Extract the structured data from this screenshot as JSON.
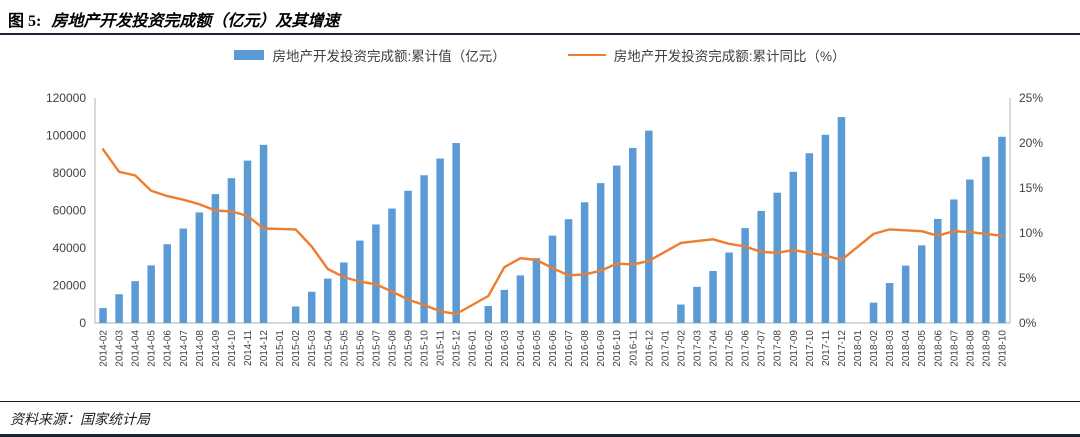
{
  "header": {
    "figure_label": "图 5:",
    "title": "房地产开发投资完成额（亿元）及其增速"
  },
  "footer": {
    "source": "资料来源：国家统计局"
  },
  "chart_data": {
    "type": "bar",
    "combo": true,
    "grid": false,
    "legend_position": "top",
    "categories": [
      "2014-02",
      "2014-03",
      "2014-04",
      "2014-05",
      "2014-06",
      "2014-07",
      "2014-08",
      "2014-09",
      "2014-10",
      "2014-11",
      "2014-12",
      "2015-01",
      "2015-02",
      "2015-03",
      "2015-04",
      "2015-05",
      "2015-06",
      "2015-07",
      "2015-08",
      "2015-09",
      "2015-10",
      "2015-11",
      "2015-12",
      "2016-01",
      "2016-02",
      "2016-03",
      "2016-04",
      "2016-05",
      "2016-06",
      "2016-07",
      "2016-08",
      "2016-09",
      "2016-10",
      "2016-11",
      "2016-12",
      "2017-01",
      "2017-02",
      "2017-03",
      "2017-04",
      "2017-05",
      "2017-06",
      "2017-07",
      "2017-08",
      "2017-09",
      "2017-10",
      "2017-11",
      "2017-12",
      "2018-01",
      "2018-02",
      "2018-03",
      "2018-04",
      "2018-05",
      "2018-06",
      "2018-07",
      "2018-08",
      "2018-09",
      "2018-10"
    ],
    "series": [
      {
        "name": "房地产开发投资完成额:累计值（亿元）",
        "type": "bar",
        "axis": "left",
        "color": "#5B9BD5",
        "values": [
          7956,
          15339,
          22322,
          30739,
          42019,
          50381,
          58975,
          68751,
          77220,
          86601,
          95036,
          null,
          8786,
          16651,
          23669,
          32292,
          43955,
          52562,
          61063,
          70535,
          78801,
          87702,
          95979,
          null,
          9052,
          17677,
          25376,
          34564,
          46631,
          55361,
          64387,
          74598,
          83975,
          93387,
          102581,
          null,
          9854,
          19292,
          27732,
          37595,
          50610,
          59761,
          69494,
          80644,
          90544,
          100387,
          109799,
          null,
          10831,
          21291,
          30592,
          41420,
          55531,
          65886,
          76519,
          88665,
          99325
        ]
      },
      {
        "name": "房地产开发投资完成额:累计同比（%）",
        "type": "line",
        "axis": "right",
        "color": "#ED7D31",
        "values": [
          19.3,
          16.8,
          16.4,
          14.7,
          14.1,
          13.7,
          13.2,
          12.5,
          12.4,
          11.9,
          10.5,
          null,
          10.4,
          8.5,
          6.0,
          5.1,
          4.6,
          4.3,
          3.5,
          2.6,
          2.0,
          1.3,
          1.0,
          null,
          3.0,
          6.2,
          7.2,
          7.0,
          6.1,
          5.3,
          5.4,
          5.8,
          6.6,
          6.5,
          6.9,
          null,
          8.9,
          9.1,
          9.3,
          8.8,
          8.5,
          7.9,
          7.8,
          8.1,
          7.8,
          7.5,
          7.0,
          null,
          9.9,
          10.4,
          10.3,
          10.2,
          9.7,
          10.2,
          10.1,
          9.9,
          9.7
        ]
      }
    ],
    "left_axis": {
      "min": 0,
      "max": 120000,
      "ticks": [
        0,
        20000,
        40000,
        60000,
        80000,
        100000,
        120000
      ]
    },
    "right_axis": {
      "min": 0,
      "max": 25,
      "ticks": [
        0,
        5,
        10,
        15,
        20,
        25
      ],
      "suffix": "%"
    },
    "axis_line_color": "#BFBFBF",
    "axis_text_color": "#3f3f3f"
  }
}
